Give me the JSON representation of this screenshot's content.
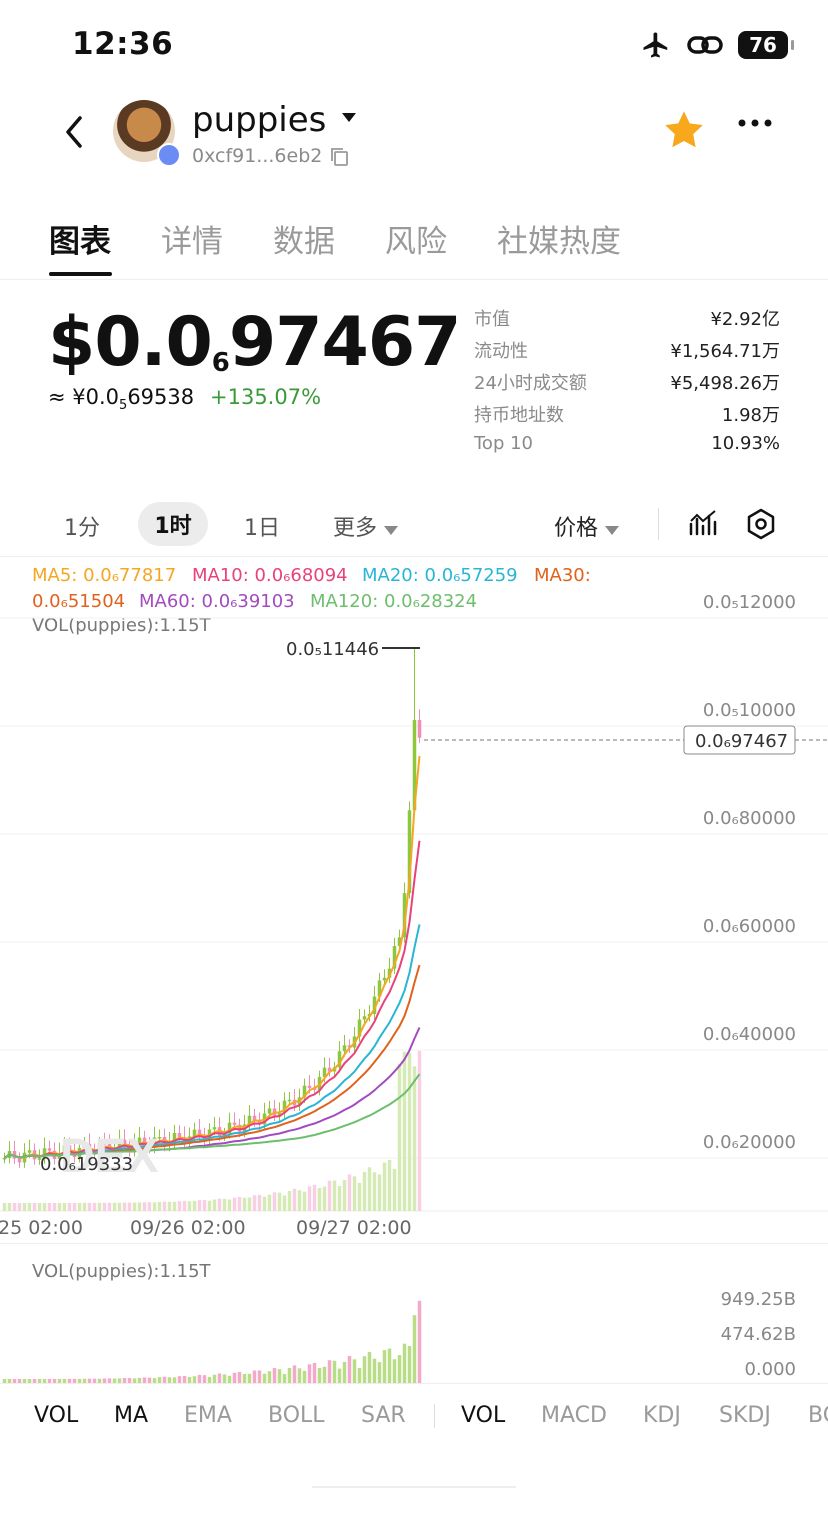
{
  "status": {
    "time": "12:36",
    "battery": "76",
    "airplane_icon": "airplane-icon",
    "link_icon": "link-icon"
  },
  "header": {
    "token_name": "puppies",
    "token_address": "0xcf91...6eb2",
    "avatar_text": "puppies",
    "star_color": "#F7A81C"
  },
  "tabs": [
    "图表",
    "详情",
    "数据",
    "风险",
    "社媒热度"
  ],
  "price": {
    "main_prefix": "$0.0",
    "main_sub": "6",
    "main_rest": "97467",
    "cny_prefix": "≈ ¥0.0",
    "cny_sub": "5",
    "cny_rest": "69538",
    "change": "+135.07%"
  },
  "stats": [
    {
      "label": "市值",
      "value": "¥2.92亿"
    },
    {
      "label": "流动性",
      "value": "¥1,564.71万"
    },
    {
      "label": "24小时成交额",
      "value": "¥5,498.26万"
    },
    {
      "label": "持币地址数",
      "value": "1.98万"
    },
    {
      "label": "Top 10",
      "value": "10.93%"
    }
  ],
  "intervals": {
    "m1": "1分",
    "h1": "1时",
    "d1": "1日",
    "more": "更多",
    "price_toggle": "价格"
  },
  "ma_legend": {
    "ma5": "MA5: 0.0₆77817",
    "ma10": "MA10: 0.0₆68094",
    "ma20": "MA20: 0.0₆57259",
    "ma30": "MA30:",
    "ma30_val": "0.0₆51504",
    "ma60": "MA60: 0.0₆39103",
    "ma120": "MA120: 0.0₆28324",
    "vol": "VOL(puppies):1.15T"
  },
  "colors": {
    "up": "#8DC63F",
    "down": "#F08DB9",
    "ma5": "#F5A623",
    "ma10": "#E8427C",
    "ma20": "#29B6D6",
    "ma30": "#E0621D",
    "ma60": "#A24BC0",
    "ma120": "#6DBE6D"
  },
  "chart": {
    "y_ticks": [
      "0.0₅12000",
      "0.0₅10000",
      "0.0₆80000",
      "0.0₆60000",
      "0.0₆40000",
      "0.0₆20000"
    ],
    "x_ticks": [
      "25 02:00",
      "09/26 02:00",
      "09/27 02:00"
    ],
    "high_label": "0.0₅11446",
    "low_label": "0.0₆19333",
    "current_label": "0.0₆97467",
    "watermark": "DEX"
  },
  "vol_panel": {
    "title": "VOL(puppies):1.15T",
    "ticks": [
      "949.25B",
      "474.62B",
      "0.000"
    ]
  },
  "indicators_main": [
    "VOL",
    "MA",
    "EMA",
    "BOLL",
    "SAR"
  ],
  "indicators_sub": [
    "VOL",
    "MACD",
    "KDJ",
    "SKDJ",
    "BC"
  ]
}
